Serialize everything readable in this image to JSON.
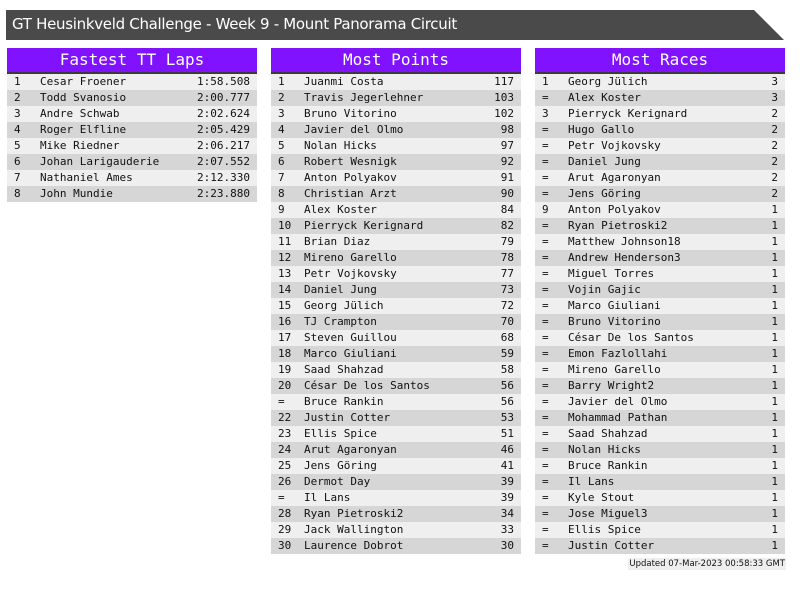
{
  "title": "GT Heusinkveld Challenge - Week 9 - Mount Panorama Circuit",
  "panels": [
    {
      "heading": "Fastest TT Laps",
      "rows": [
        [
          "1",
          "Cesar Froener",
          "1:58.508"
        ],
        [
          "2",
          "Todd Svanosio",
          "2:00.777"
        ],
        [
          "3",
          "Andre Schwab",
          "2:02.624"
        ],
        [
          "4",
          "Roger Elfline",
          "2:05.429"
        ],
        [
          "5",
          "Mike Riedner",
          "2:06.217"
        ],
        [
          "6",
          "Johan Larigauderie",
          "2:07.552"
        ],
        [
          "7",
          "Nathaniel Ames",
          "2:12.330"
        ],
        [
          "8",
          "John Mundie",
          "2:23.880"
        ]
      ]
    },
    {
      "heading": "Most Points",
      "rows": [
        [
          "1",
          "Juanmi Costa",
          "117"
        ],
        [
          "2",
          "Travis Jegerlehner",
          "103"
        ],
        [
          "3",
          "Bruno Vitorino",
          "102"
        ],
        [
          "4",
          "Javier del Olmo",
          "98"
        ],
        [
          "5",
          "Nolan Hicks",
          "97"
        ],
        [
          "6",
          "Robert Wesnigk",
          "92"
        ],
        [
          "7",
          "Anton Polyakov",
          "91"
        ],
        [
          "8",
          "Christian Arzt",
          "90"
        ],
        [
          "9",
          "Alex Koster",
          "84"
        ],
        [
          "10",
          "Pierryck Kerignard",
          "82"
        ],
        [
          "11",
          "Brian Diaz",
          "79"
        ],
        [
          "12",
          "Mireno Garello",
          "78"
        ],
        [
          "13",
          "Petr Vojkovsky",
          "77"
        ],
        [
          "14",
          "Daniel Jung",
          "73"
        ],
        [
          "15",
          "Georg Jülich",
          "72"
        ],
        [
          "16",
          "TJ Crampton",
          "70"
        ],
        [
          "17",
          "Steven Guillou",
          "68"
        ],
        [
          "18",
          "Marco Giuliani",
          "59"
        ],
        [
          "19",
          "Saad Shahzad",
          "58"
        ],
        [
          "20",
          "César De los Santos",
          "56"
        ],
        [
          "=",
          "Bruce Rankin",
          "56"
        ],
        [
          "22",
          "Justin Cotter",
          "53"
        ],
        [
          "23",
          "Ellis Spice",
          "51"
        ],
        [
          "24",
          "Arut Agaronyan",
          "46"
        ],
        [
          "25",
          "Jens Göring",
          "41"
        ],
        [
          "26",
          "Dermot Day",
          "39"
        ],
        [
          "=",
          "Il Lans",
          "39"
        ],
        [
          "28",
          "Ryan Pietroski2",
          "34"
        ],
        [
          "29",
          "Jack Wallington",
          "33"
        ],
        [
          "30",
          "Laurence Dobrot",
          "30"
        ]
      ]
    },
    {
      "heading": "Most Races",
      "rows": [
        [
          "1",
          "Georg Jülich",
          "3"
        ],
        [
          "=",
          "Alex Koster",
          "3"
        ],
        [
          "3",
          "Pierryck Kerignard",
          "2"
        ],
        [
          "=",
          "Hugo Gallo",
          "2"
        ],
        [
          "=",
          "Petr Vojkovsky",
          "2"
        ],
        [
          "=",
          "Daniel Jung",
          "2"
        ],
        [
          "=",
          "Arut Agaronyan",
          "2"
        ],
        [
          "=",
          "Jens Göring",
          "2"
        ],
        [
          "9",
          "Anton Polyakov",
          "1"
        ],
        [
          "=",
          "Ryan Pietroski2",
          "1"
        ],
        [
          "=",
          "Matthew Johnson18",
          "1"
        ],
        [
          "=",
          "Andrew Henderson3",
          "1"
        ],
        [
          "=",
          "Miguel Torres",
          "1"
        ],
        [
          "=",
          "Vojin Gajic",
          "1"
        ],
        [
          "=",
          "Marco Giuliani",
          "1"
        ],
        [
          "=",
          "Bruno Vitorino",
          "1"
        ],
        [
          "=",
          "César De los Santos",
          "1"
        ],
        [
          "=",
          "Emon Fazlollahi",
          "1"
        ],
        [
          "=",
          "Mireno Garello",
          "1"
        ],
        [
          "=",
          "Barry Wright2",
          "1"
        ],
        [
          "=",
          "Javier del Olmo",
          "1"
        ],
        [
          "=",
          "Mohammad Pathan",
          "1"
        ],
        [
          "=",
          "Saad Shahzad",
          "1"
        ],
        [
          "=",
          "Nolan Hicks",
          "1"
        ],
        [
          "=",
          "Bruce Rankin",
          "1"
        ],
        [
          "=",
          "Il Lans",
          "1"
        ],
        [
          "=",
          "Kyle Stout",
          "1"
        ],
        [
          "=",
          "Jose Miguel3",
          "1"
        ],
        [
          "=",
          "Ellis Spice",
          "1"
        ],
        [
          "=",
          "Justin Cotter",
          "1"
        ]
      ]
    }
  ],
  "footer": "Updated 07-Mar-2023 00:58:33 GMT",
  "colors": {
    "header": "#8012ff",
    "title_bar": "#4a4a4a",
    "row_light": "#efefef",
    "row_dark": "#d6d6d6"
  }
}
